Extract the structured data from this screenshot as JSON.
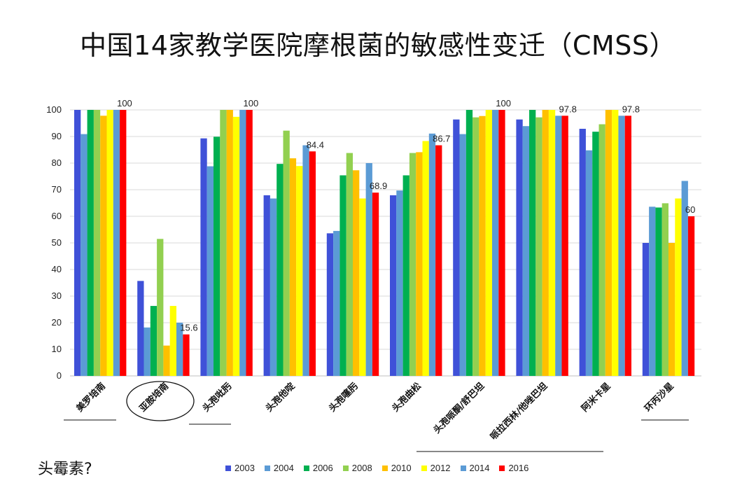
{
  "title": "中国14家教学医院摩根菌的敏感性变迁（CMSS）",
  "note": "头霉素?",
  "chart_data": {
    "type": "bar",
    "title": "中国14家教学医院摩根菌的敏感性变迁（CMSS）",
    "xlabel": "",
    "ylabel": "",
    "ylim": [
      0,
      100
    ],
    "yticks": [
      0,
      10,
      20,
      30,
      40,
      50,
      60,
      70,
      80,
      90,
      100
    ],
    "grid": true,
    "legend_position": "bottom",
    "categories": [
      "美罗培南",
      "亚胺培南",
      "头孢吡肟",
      "头孢他啶",
      "头孢噻肟",
      "头孢曲松",
      "头孢哌酮/舒巴坦",
      "哌拉西林/他唑巴坦",
      "阿米卡星",
      "环丙沙星"
    ],
    "series": [
      {
        "name": "2003",
        "color": "#3f51d8",
        "values": [
          100,
          35.7,
          89.3,
          67.9,
          53.6,
          67.9,
          96.4,
          96.4,
          92.9,
          50
        ]
      },
      {
        "name": "2004",
        "color": "#5b9bd5",
        "values": [
          90.9,
          18.2,
          78.8,
          66.7,
          54.5,
          69.7,
          90.9,
          93.9,
          84.8,
          63.6
        ]
      },
      {
        "name": "2006",
        "color": "#00b050",
        "values": [
          100,
          26.3,
          89.9,
          79.7,
          75.4,
          75.4,
          100,
          100,
          91.8,
          63.3
        ]
      },
      {
        "name": "2008",
        "color": "#92d050",
        "values": [
          100,
          51.5,
          100,
          92.2,
          83.8,
          83.8,
          97.2,
          97.2,
          94.6,
          64.9
        ]
      },
      {
        "name": "2010",
        "color": "#ffc000",
        "values": [
          97.8,
          11.4,
          100,
          81.8,
          77.3,
          84.1,
          97.7,
          100,
          100,
          50
        ]
      },
      {
        "name": "2012",
        "color": "#ffff00",
        "values": [
          100,
          26.3,
          97.4,
          78.9,
          66.7,
          88.3,
          100,
          100,
          100,
          66.7
        ]
      },
      {
        "name": "2014",
        "color": "#5b9bd5",
        "values": [
          100,
          20,
          100,
          86.7,
          80,
          91.1,
          100,
          97.8,
          97.8,
          73.3
        ]
      },
      {
        "name": "2016",
        "color": "#ff0000",
        "values": [
          100,
          15.6,
          100,
          84.4,
          68.9,
          86.7,
          100,
          97.8,
          97.8,
          60
        ]
      }
    ],
    "data_labels": [
      "100",
      "15.6",
      "100",
      "84.4",
      "68.9",
      "86.7",
      "100",
      "97.8",
      "97.8",
      "60"
    ],
    "annotations": {
      "circled_category": "亚胺培南",
      "underlined_categories": [
        "美罗培南",
        "头孢吡肟",
        "环丙沙星"
      ],
      "underlined_group": [
        "头孢哌酮/舒巴坦",
        "哌拉西林/他唑巴坦"
      ]
    }
  }
}
